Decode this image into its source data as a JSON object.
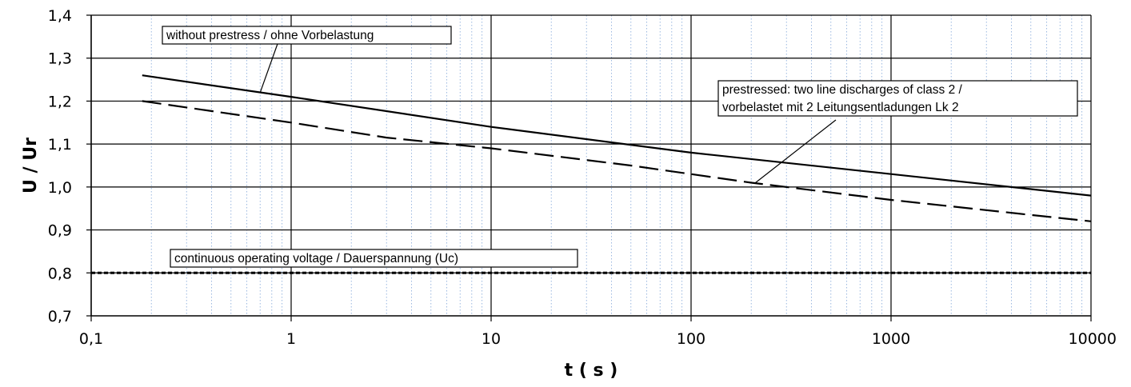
{
  "chart_data": {
    "type": "line",
    "xlabel": "t ( s )",
    "ylabel": "U / Ur",
    "x_scale": "log",
    "xlim": [
      0.1,
      10000
    ],
    "ylim": [
      0.7,
      1.4
    ],
    "grid": true,
    "x_ticks": [
      {
        "value": 0.1,
        "label": "0,1"
      },
      {
        "value": 1,
        "label": "1"
      },
      {
        "value": 10,
        "label": "10"
      },
      {
        "value": 100,
        "label": "100"
      },
      {
        "value": 1000,
        "label": "1000"
      },
      {
        "value": 10000,
        "label": "10000"
      }
    ],
    "y_ticks": [
      {
        "value": 0.7,
        "label": "0,7"
      },
      {
        "value": 0.8,
        "label": "0,8"
      },
      {
        "value": 0.9,
        "label": "0,9"
      },
      {
        "value": 1.0,
        "label": "1,0"
      },
      {
        "value": 1.1,
        "label": "1,1"
      },
      {
        "value": 1.2,
        "label": "1,2"
      },
      {
        "value": 1.3,
        "label": "1,3"
      },
      {
        "value": 1.4,
        "label": "1,4"
      }
    ],
    "series": [
      {
        "id": "without-prestress",
        "style": "solid",
        "color": "#000000",
        "x": [
          0.18,
          1,
          10,
          100,
          1000,
          10000
        ],
        "y": [
          1.26,
          1.21,
          1.14,
          1.08,
          1.03,
          0.98
        ]
      },
      {
        "id": "prestressed",
        "style": "dashed",
        "color": "#000000",
        "x": [
          0.18,
          1,
          3,
          10,
          50,
          200,
          1000,
          5000,
          10000
        ],
        "y": [
          1.2,
          1.15,
          1.115,
          1.09,
          1.05,
          1.01,
          0.97,
          0.935,
          0.92
        ]
      },
      {
        "id": "continuous-operating-voltage",
        "style": "dotted",
        "color": "#000000",
        "x": [
          0.1,
          10000
        ],
        "y": [
          0.8,
          0.8
        ]
      }
    ],
    "annotations": [
      {
        "id": "without-prestress",
        "lines": [
          "without prestress / ohne Vorbelastung"
        ],
        "target": {
          "x": 0.7,
          "y": 1.22
        }
      },
      {
        "id": "prestressed",
        "lines": [
          "prestressed: two line discharges of class 2 /",
          "vorbelastet mit 2 Leitungsentladungen Lk 2"
        ],
        "target": {
          "x": 210,
          "y": 1.01
        }
      },
      {
        "id": "continuous-operating-voltage",
        "lines": [
          "continuous operating voltage / Dauerspannung  (Uc)"
        ],
        "target": null
      }
    ]
  }
}
